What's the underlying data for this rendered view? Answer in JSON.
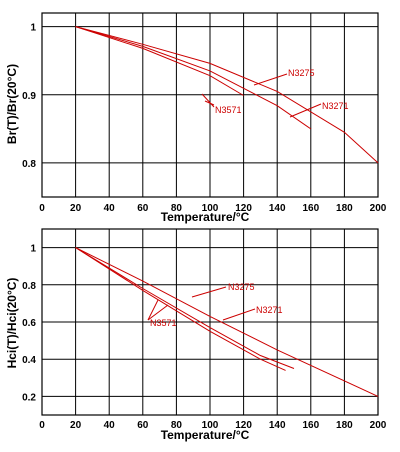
{
  "chart_data": [
    {
      "type": "line",
      "xlabel": "Temperature/°C",
      "ylabel": "Br(T)/Br(20°C)",
      "xlim": [
        0,
        200
      ],
      "ylim": [
        0.75,
        1.02
      ],
      "x_ticks": [
        0,
        20,
        40,
        60,
        80,
        100,
        120,
        140,
        160,
        180,
        200
      ],
      "y_ticks": [
        0.8,
        0.9,
        1
      ],
      "y_tick_labels": [
        "0.8",
        "0.9",
        "1"
      ],
      "grid": true,
      "series": [
        {
          "name": "N3275",
          "x": [
            20,
            60,
            100,
            140,
            180,
            200
          ],
          "y": [
            1.0,
            0.974,
            0.946,
            0.905,
            0.845,
            0.8
          ]
        },
        {
          "name": "N3271",
          "x": [
            20,
            60,
            100,
            140,
            160
          ],
          "y": [
            1.0,
            0.971,
            0.935,
            0.884,
            0.85
          ]
        },
        {
          "name": "N3571",
          "x": [
            20,
            60,
            100,
            120
          ],
          "y": [
            1.0,
            0.968,
            0.928,
            0.899
          ]
        }
      ],
      "annotations": [
        {
          "text": "N3275",
          "series": "N3275"
        },
        {
          "text": "N3271",
          "series": "N3271"
        },
        {
          "text": "N3571",
          "series": "N3571"
        }
      ]
    },
    {
      "type": "line",
      "xlabel": "Temperature/°C",
      "ylabel": "Hci(T)/Hci(20°C)",
      "xlim": [
        0,
        200
      ],
      "ylim": [
        0.1,
        1.1
      ],
      "x_ticks": [
        0,
        20,
        40,
        60,
        80,
        100,
        120,
        140,
        160,
        180,
        200
      ],
      "y_ticks": [
        0.2,
        0.4,
        0.6,
        0.8,
        1
      ],
      "y_tick_labels": [
        "0.2",
        "0.4",
        "0.6",
        "0.8",
        "1"
      ],
      "grid": true,
      "series": [
        {
          "name": "N3275",
          "x": [
            20,
            60,
            100,
            140,
            200
          ],
          "y": [
            1.0,
            0.82,
            0.63,
            0.45,
            0.2
          ]
        },
        {
          "name": "N3271",
          "x": [
            20,
            60,
            100,
            130,
            150
          ],
          "y": [
            1.0,
            0.78,
            0.57,
            0.42,
            0.35
          ]
        },
        {
          "name": "N3571",
          "x": [
            20,
            60,
            100,
            130,
            145
          ],
          "y": [
            1.0,
            0.77,
            0.55,
            0.4,
            0.34
          ]
        }
      ],
      "annotations": [
        {
          "text": "N3275",
          "series": "N3275"
        },
        {
          "text": "N3271",
          "series": "N3271"
        },
        {
          "text": "N3571",
          "series": "N3571"
        }
      ]
    }
  ]
}
